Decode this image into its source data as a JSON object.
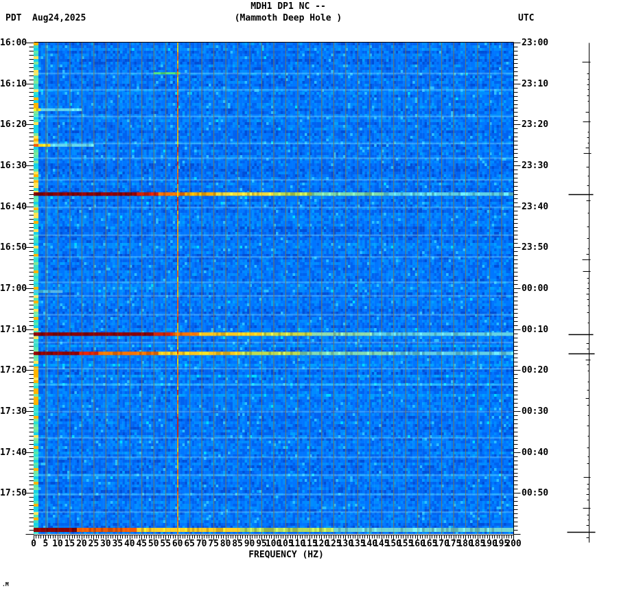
{
  "header": {
    "tz_left": "PDT",
    "date": "Aug24,2025",
    "title": "MDH1 DP1 NC --",
    "subtitle": "(Mammoth Deep Hole )",
    "tz_right": "UTC"
  },
  "footer": {
    "logo": ".M"
  },
  "chart_data": {
    "type": "heatmap",
    "title": "MDH1 DP1 NC --",
    "subtitle": "(Mammoth Deep Hole )",
    "xlabel": "FREQUENCY (HZ)",
    "x_range": [
      0,
      200
    ],
    "x_label_step_hz": 5,
    "x_minor_step_hz": 1,
    "x_tick_labels": [
      "0",
      "5",
      "10",
      "15",
      "20",
      "25",
      "30",
      "35",
      "40",
      "45",
      "50",
      "55",
      "60",
      "65",
      "70",
      "75",
      "80",
      "85",
      "90",
      "95",
      "100",
      "105",
      "110",
      "115",
      "120",
      "125",
      "130",
      "135",
      "140",
      "145",
      "150",
      "155",
      "160",
      "165",
      "170",
      "175",
      "180",
      "185",
      "190",
      "195",
      "200"
    ],
    "time_span_minutes": 120,
    "label_step_minutes": 10,
    "minor_tick_minutes": 1,
    "left_axis_labels": [
      "16:00",
      "16:10",
      "16:20",
      "16:30",
      "16:40",
      "16:50",
      "17:00",
      "17:10",
      "17:20",
      "17:30",
      "17:40",
      "17:50"
    ],
    "right_axis_labels": [
      "23:00",
      "23:10",
      "23:20",
      "23:30",
      "23:40",
      "23:50",
      "00:00",
      "00:10",
      "00:20",
      "00:30",
      "00:40",
      "00:50"
    ],
    "grid": {
      "freq_step_hz": 5,
      "color": "rgba(118,118,92,0.9)",
      "over_event_alpha": 0.3
    },
    "powerline_hz": 60,
    "powerline_colors": [
      "#ff8800",
      "#ff9d00",
      "#ffc400",
      "#ff5e00",
      "#d42300",
      "#ffe800"
    ],
    "noise_palette": [
      "#0030b0",
      "#004fd8",
      "#0063f0",
      "#0077ff",
      "#008bff",
      "#009fff",
      "#2cbeff",
      "#00d8ff"
    ],
    "low_freq_band": {
      "hz_max": 2,
      "colors": [
        "#18d2e6",
        "#3cdcc8",
        "#7de89b",
        "#ffe455",
        "#2ee0d2",
        "#59e8ae",
        "#ffb400"
      ]
    },
    "persistent_column": {
      "hz": 5.6,
      "color": "rgba(130,225,140,0.38)"
    },
    "faint_rows_minutes": [
      7.5,
      11.5,
      18.0,
      24.6,
      28.2,
      33.5,
      40.2,
      47.0,
      52.3,
      58.5,
      61.8,
      66.4,
      73.2,
      79.6,
      83.5,
      90.1,
      96.5,
      101.2,
      105.6,
      110.3,
      114.6
    ],
    "events": [
      {
        "t_min": 7.5,
        "thickness": 3,
        "stops": [
          [
            50,
            61,
            "#55e87d"
          ]
        ]
      },
      {
        "t_min": 16.4,
        "thickness": 4,
        "stops": [
          [
            0,
            3,
            "#ffe81e"
          ],
          [
            3,
            20,
            "#62d8ee"
          ]
        ]
      },
      {
        "t_min": 25.1,
        "thickness": 4,
        "stops": [
          [
            0,
            2,
            "#ff5a00"
          ],
          [
            2,
            7,
            "#ffdc1e"
          ],
          [
            7,
            25,
            "#66d8ee"
          ]
        ]
      },
      {
        "t_min": 37.0,
        "thickness": 5,
        "stops": [
          [
            0,
            43,
            "#8b0000"
          ],
          [
            43,
            52,
            "#d81e00"
          ],
          [
            52,
            63,
            "#ff7300"
          ],
          [
            63,
            76,
            "#ffae00"
          ],
          [
            76,
            100,
            "#f2dc3c"
          ],
          [
            100,
            116,
            "#bcdc50"
          ],
          [
            116,
            146,
            "#7fdcaa"
          ],
          [
            146,
            200,
            "#5fd2e6"
          ]
        ]
      },
      {
        "t_min": 60.8,
        "thickness": 4,
        "stops": [
          [
            0,
            6,
            "#4ecbee"
          ],
          [
            6,
            12,
            "#55b8e8"
          ]
        ]
      },
      {
        "t_min": 71.2,
        "thickness": 5,
        "stops": [
          [
            0,
            50,
            "#8b0000"
          ],
          [
            50,
            58,
            "#d82400"
          ],
          [
            58,
            69,
            "#ff7300"
          ],
          [
            69,
            95,
            "#ffc81e"
          ],
          [
            95,
            116,
            "#cdda46"
          ],
          [
            116,
            141,
            "#92dcaa"
          ],
          [
            141,
            200,
            "#63d2e6"
          ]
        ]
      },
      {
        "t_min": 75.9,
        "thickness": 5,
        "stops": [
          [
            0,
            19,
            "#8b0000"
          ],
          [
            19,
            27,
            "#d32000"
          ],
          [
            27,
            52,
            "#ff7300"
          ],
          [
            52,
            86,
            "#ffc81e"
          ],
          [
            86,
            111,
            "#bfdc50"
          ],
          [
            111,
            151,
            "#84dcb4"
          ],
          [
            151,
            200,
            "#63cfe6"
          ]
        ]
      },
      {
        "t_min": 119.0,
        "thickness": 6,
        "stops": [
          [
            0,
            18,
            "#8b0000"
          ],
          [
            18,
            43,
            "#f55a00"
          ],
          [
            43,
            86,
            "#ffd225"
          ],
          [
            86,
            125,
            "#b4dc5a"
          ],
          [
            125,
            200,
            "#73d7d2"
          ]
        ]
      }
    ],
    "amplitude_trace_marks": [
      [
        4.7,
        10,
        2
      ],
      [
        7.5,
        3,
        0
      ],
      [
        8.9,
        2,
        0
      ],
      [
        10.2,
        3,
        0
      ],
      [
        11.4,
        2,
        0
      ],
      [
        12.9,
        3,
        0
      ],
      [
        14.2,
        2,
        0
      ],
      [
        16.9,
        5,
        0
      ],
      [
        19.3,
        9,
        2
      ],
      [
        21.8,
        2,
        0
      ],
      [
        23.1,
        3,
        0
      ],
      [
        24.5,
        2,
        0
      ],
      [
        25.6,
        5,
        0
      ],
      [
        27.0,
        8,
        3
      ],
      [
        30.3,
        4,
        0
      ],
      [
        32.5,
        2,
        0
      ],
      [
        34.9,
        3,
        0
      ],
      [
        37.0,
        30,
        6
      ],
      [
        38.5,
        4,
        2
      ],
      [
        41.6,
        2,
        0
      ],
      [
        44.9,
        3,
        0
      ],
      [
        47.8,
        3,
        0
      ],
      [
        50.3,
        2,
        0
      ],
      [
        51.6,
        4,
        0
      ],
      [
        53.0,
        10,
        2
      ],
      [
        55.8,
        9,
        2
      ],
      [
        57.5,
        3,
        0
      ],
      [
        58.7,
        2,
        0
      ],
      [
        60.0,
        3,
        0
      ],
      [
        61.3,
        4,
        0
      ],
      [
        62.7,
        3,
        0
      ],
      [
        64.2,
        2,
        0
      ],
      [
        65.9,
        3,
        0
      ],
      [
        68.4,
        2,
        0
      ],
      [
        71.2,
        30,
        6
      ],
      [
        73.4,
        4,
        0
      ],
      [
        74.7,
        3,
        0
      ],
      [
        75.9,
        30,
        8
      ],
      [
        77.4,
        5,
        2
      ],
      [
        78.6,
        3,
        0
      ],
      [
        80.1,
        2,
        0
      ],
      [
        82.8,
        2,
        0
      ],
      [
        84.8,
        3,
        0
      ],
      [
        86.8,
        5,
        0
      ],
      [
        88.5,
        3,
        0
      ],
      [
        91.0,
        2,
        0
      ],
      [
        93.5,
        3,
        0
      ],
      [
        96.0,
        2,
        0
      ],
      [
        98.9,
        3,
        0
      ],
      [
        101.1,
        2,
        0
      ],
      [
        102.7,
        3,
        0
      ],
      [
        106.1,
        8,
        2
      ],
      [
        107.8,
        3,
        0
      ],
      [
        108.9,
        3,
        0
      ],
      [
        110.3,
        4,
        0
      ],
      [
        111.6,
        3,
        0
      ],
      [
        113.6,
        9,
        2
      ],
      [
        115.3,
        3,
        0
      ],
      [
        116.5,
        2,
        0
      ],
      [
        117.8,
        4,
        0
      ],
      [
        119.5,
        32,
        9
      ],
      [
        120.8,
        4,
        0
      ]
    ]
  }
}
